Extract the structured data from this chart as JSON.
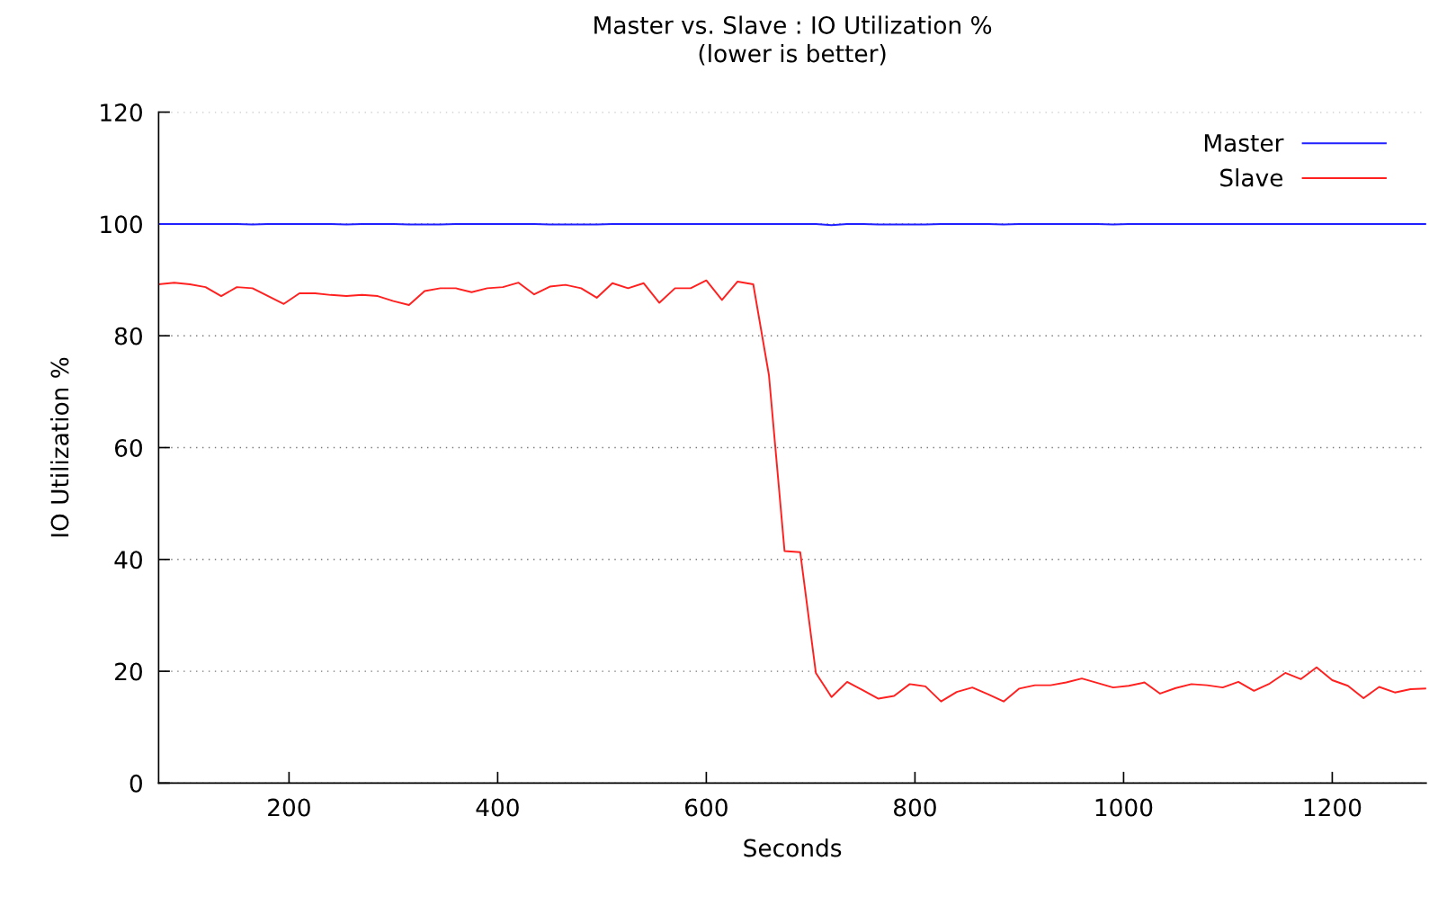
{
  "chart_data": {
    "type": "line",
    "title": "Master vs. Slave : IO Utilization %\n(lower is better)",
    "xlabel": "Seconds",
    "ylabel": "IO Utilization %",
    "x": [
      75,
      90,
      105,
      120,
      135,
      150,
      165,
      180,
      195,
      210,
      225,
      240,
      255,
      270,
      285,
      300,
      315,
      330,
      345,
      360,
      375,
      390,
      405,
      420,
      435,
      450,
      465,
      480,
      495,
      510,
      525,
      540,
      555,
      570,
      585,
      600,
      615,
      630,
      645,
      660,
      675,
      690,
      705,
      720,
      735,
      750,
      765,
      780,
      795,
      810,
      825,
      840,
      855,
      870,
      885,
      900,
      915,
      930,
      945,
      960,
      975,
      990,
      1005,
      1020,
      1035,
      1050,
      1065,
      1080,
      1095,
      1110,
      1125,
      1140,
      1155,
      1170,
      1185,
      1200,
      1215,
      1230,
      1245,
      1260,
      1275,
      1290
    ],
    "series": [
      {
        "name": "Master",
        "color": "#2020ff",
        "values": [
          100,
          100,
          100,
          100,
          100,
          100,
          99.9,
          100,
          100,
          100,
          100,
          100,
          99.9,
          100,
          100,
          100,
          99.9,
          99.9,
          99.9,
          100,
          100,
          100,
          100,
          100,
          100,
          99.9,
          99.9,
          99.9,
          99.9,
          100,
          100,
          100,
          100,
          100,
          100,
          100,
          100,
          100,
          100,
          100,
          100,
          100,
          100,
          99.8,
          100,
          100,
          99.9,
          99.9,
          99.9,
          99.9,
          100,
          100,
          100,
          100,
          99.9,
          100,
          100,
          100,
          100,
          100,
          100,
          99.9,
          100,
          100,
          100,
          100,
          100,
          100,
          100,
          100,
          100,
          100,
          100,
          100,
          100,
          100,
          100,
          100,
          100,
          100,
          100,
          100
        ]
      },
      {
        "name": "Slave",
        "color": "#ff2020",
        "values": [
          89.2,
          89.5,
          89.2,
          88.7,
          87.1,
          88.7,
          88.5,
          87.1,
          85.7,
          87.6,
          87.6,
          87.3,
          87.1,
          87.3,
          87.1,
          86.2,
          85.5,
          88.0,
          88.5,
          88.5,
          87.8,
          88.5,
          88.7,
          89.5,
          87.4,
          88.8,
          89.1,
          88.5,
          86.8,
          89.4,
          88.5,
          89.4,
          85.9,
          88.5,
          88.5,
          89.9,
          86.4,
          89.7,
          89.2,
          73,
          41.5,
          41.3,
          19.7,
          15.4,
          18.1,
          16.6,
          15.1,
          15.6,
          17.7,
          17.3,
          14.6,
          16.3,
          17.1,
          15.9,
          14.6,
          16.9,
          17.5,
          17.5,
          18.0,
          18.7,
          17.9,
          17.1,
          17.4,
          18.0,
          16.0,
          17.0,
          17.7,
          17.5,
          17.1,
          18.1,
          16.5,
          17.8,
          19.7,
          18.6,
          20.7,
          18.4,
          17.4,
          15.2,
          17.2,
          16.2,
          16.8,
          16.9
        ]
      }
    ],
    "xlim": [
      75,
      1290
    ],
    "xticks": [
      200,
      400,
      600,
      800,
      1000,
      1200
    ],
    "ylim": [
      0,
      120
    ],
    "yticks": [
      0,
      20,
      40,
      60,
      80,
      100,
      120
    ],
    "grid": "y",
    "legend": "top right",
    "marker": "none",
    "line_style": "solid"
  }
}
